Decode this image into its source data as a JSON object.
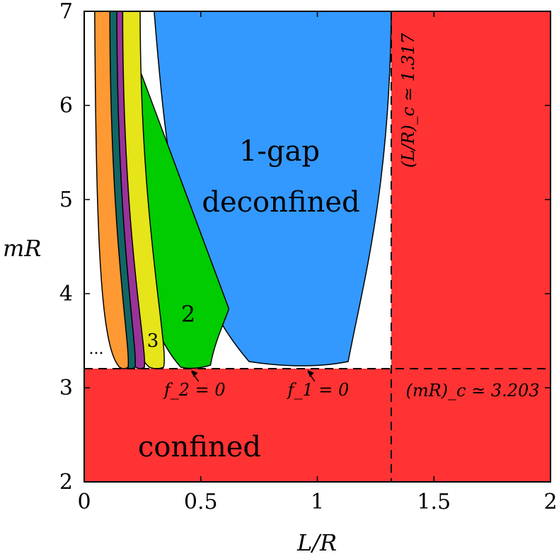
{
  "chart_data": {
    "type": "area",
    "xlabel": "L/R",
    "ylabel": "mR",
    "xlim": [
      0,
      2
    ],
    "ylim": [
      2,
      7
    ],
    "x_ticks": [
      "0",
      "0.5",
      "1",
      "1.5",
      "2"
    ],
    "y_ticks": [
      "2",
      "3",
      "4",
      "5",
      "6",
      "7"
    ],
    "critical_x": 1.317,
    "critical_y": 3.203,
    "critical_x_label": "(L/R)_c ≃ 1.317",
    "critical_y_label": "(mR)_c ≃ 3.203",
    "regions": [
      {
        "label": "confined",
        "color": "#ff3333"
      },
      {
        "label": "1-gap",
        "label2": "deconfined",
        "color": "#3399ff",
        "x_min": 0.95,
        "y_min": 3.203
      },
      {
        "label": "2",
        "color": "#00cc00",
        "x_min": 0.475,
        "y_min": 3.203
      },
      {
        "label": "3",
        "color": "#e5e51a",
        "x_min": 0.31,
        "y_min": 3.203
      },
      {
        "label": "",
        "color": "#993399",
        "x_min": 0.24,
        "y_min": 3.203
      },
      {
        "label": "",
        "color": "#116666",
        "x_min": 0.2,
        "y_min": 3.203
      },
      {
        "label": "",
        "color": "#ff9933",
        "x_min": 0.17,
        "y_min": 3.203
      },
      {
        "label": "...",
        "color": "#ffffff"
      }
    ],
    "annotations": [
      {
        "text": "f_2 = 0",
        "x": 0.55,
        "y": 3.203
      },
      {
        "text": "f_1 = 0",
        "x": 1.08,
        "y": 3.203
      }
    ]
  }
}
